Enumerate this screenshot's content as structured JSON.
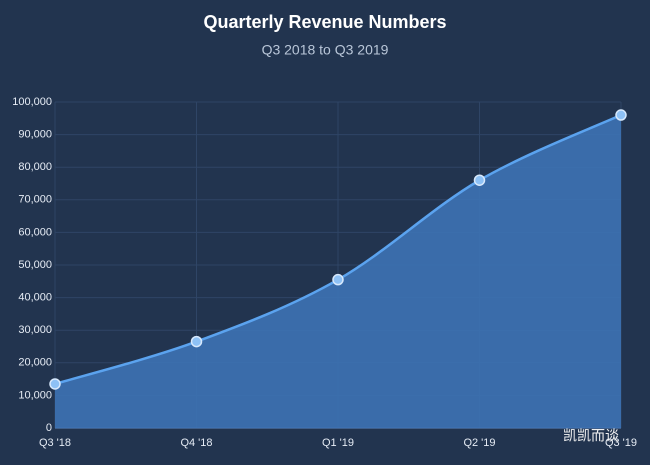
{
  "chart_data": {
    "type": "area",
    "title": "Quarterly Revenue Numbers",
    "subtitle": "Q3 2018 to Q3 2019",
    "categories": [
      "Q3 '18",
      "Q4 '18",
      "Q1 '19",
      "Q2 '19",
      "Q3 '19"
    ],
    "values": [
      13500,
      26500,
      45500,
      76000,
      96000
    ],
    "color": "#5ba3ef",
    "fill_color": "#3d72b4",
    "ylim": [
      0,
      100000
    ],
    "yticks": [
      0,
      {
        "value": 10000,
        "label": "10,000"
      },
      {
        "value": 20000,
        "label": "20,000"
      },
      {
        "value": 30000,
        "label": "30,000"
      },
      {
        "value": 40000,
        "label": "40,000"
      },
      {
        "value": 50000,
        "label": "50,000"
      },
      {
        "value": 60000,
        "label": "60,000"
      },
      {
        "value": 70000,
        "label": "70,000"
      },
      {
        "value": 80000,
        "label": "80,000"
      },
      {
        "value": 90000,
        "label": "90,000"
      },
      {
        "value": 100000,
        "label": "100,000"
      }
    ],
    "grid": true,
    "watermark": "凯凯而谈"
  }
}
